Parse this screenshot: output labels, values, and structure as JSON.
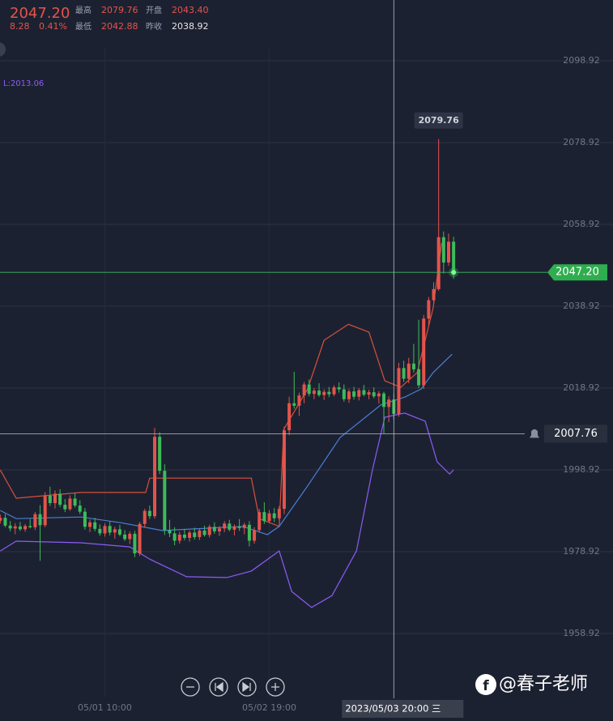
{
  "header": {
    "price": "2047.20",
    "change": "8.28",
    "change_pct": "0.41%",
    "stats": [
      {
        "label": "最高",
        "value": "2079.76"
      },
      {
        "label": "开盘",
        "value": "2043.40"
      },
      {
        "label": "最低",
        "value": "2042.88"
      },
      {
        "label": "昨收",
        "value": "2038.92"
      }
    ],
    "boll_label": "L:2013.06"
  },
  "chart_data": {
    "type": "candlestick",
    "up_color": "#e4544a",
    "down_color": "#3dbb5a",
    "xlim": [
      -0.05,
      123.0
    ],
    "ylim": [
      1943.48,
      2113.77
    ],
    "yticks": [
      2098.92,
      2078.92,
      2058.92,
      2038.92,
      2018.92,
      1998.92,
      1978.92,
      1958.92
    ],
    "xticks": [
      {
        "value": 21,
        "label": "05/01 10:00"
      },
      {
        "value": 54,
        "label": "05/02 19:00"
      }
    ],
    "grid": true,
    "open": [
      1986.5,
      1987.2,
      1985.3,
      1984.6,
      1985.1,
      1984.4,
      1985.2,
      1984.9,
      1988.1,
      1985.4,
      1992.6,
      1990.8,
      1993.1,
      1990.4,
      1989.3,
      1991.9,
      1990.2,
      1988.7,
      1985.0,
      1986.1,
      1984.5,
      1983.4,
      1985.2,
      1983.6,
      1984.4,
      1983.1,
      1982.0,
      1983.3,
      1978.5,
      1985.7,
      1988.9,
      1987.6,
      2007.0,
      1998.7,
      1984.2,
      1983.4,
      1981.6,
      1983.1,
      1982.3,
      1983.6,
      1982.5,
      1984.1,
      1983.0,
      1985.0,
      1983.9,
      1984.6,
      1985.8,
      1984.3,
      1985.1,
      1984.7,
      1985.5,
      1981.6,
      1984.2,
      1988.6,
      1986.4,
      1988.3,
      1987.1,
      1989.4,
      2008.6,
      2015.2,
      2014.6,
      2017.1,
      2019.8,
      2017.5,
      2018.3,
      2017.2,
      2018.0,
      2017.4,
      2019.1,
      2018.6,
      2016.2,
      2018.1,
      2016.8,
      2018.4,
      2017.3,
      2017.9,
      2016.9,
      2017.6,
      2014.3,
      2016.1,
      2012.6,
      2023.8,
      2021.2,
      2024.9,
      2023.5,
      2019.6,
      2035.9,
      2040.4,
      2043.1,
      2055.8,
      2049.6,
      2054.7
    ],
    "high": [
      1988.0,
      1988.1,
      1986.4,
      1985.9,
      1986.2,
      1985.7,
      1986.9,
      1988.6,
      1990.3,
      1993.5,
      1994.8,
      1993.9,
      1994.2,
      1991.8,
      1992.7,
      1993.3,
      1991.5,
      1989.6,
      1986.8,
      1987.2,
      1985.6,
      1985.9,
      1986.3,
      1985.0,
      1985.5,
      1984.2,
      1983.9,
      1984.0,
      1986.2,
      1989.4,
      1990.2,
      2009.2,
      2008.1,
      2000.3,
      1986.7,
      1984.9,
      1983.8,
      1984.5,
      1984.1,
      1984.8,
      1984.6,
      1985.3,
      1985.5,
      1986.1,
      1985.2,
      1986.4,
      1986.7,
      1985.6,
      1986.9,
      1986.0,
      1986.4,
      1984.9,
      1989.4,
      1991.0,
      1989.1,
      1989.6,
      1990.1,
      2009.5,
      2016.8,
      2022.9,
      2017.8,
      2020.4,
      2021.0,
      2018.9,
      2020.1,
      2018.6,
      2019.2,
      2019.6,
      2020.3,
      2019.8,
      2018.7,
      2019.2,
      2018.9,
      2019.7,
      2018.5,
      2019.1,
      2018.2,
      2018.0,
      2016.9,
      2017.5,
      2025.1,
      2025.6,
      2026.3,
      2029.7,
      2035.6,
      2036.8,
      2041.2,
      2044.8,
      2079.76,
      2057.2,
      2056.7,
      2055.9
    ],
    "low": [
      1985.8,
      1984.9,
      1983.9,
      1983.2,
      1984.0,
      1983.8,
      1984.6,
      1984.2,
      1976.7,
      1984.9,
      1990.1,
      1989.5,
      1989.8,
      1988.6,
      1988.9,
      1989.7,
      1988.1,
      1984.3,
      1983.7,
      1983.9,
      1982.8,
      1982.6,
      1982.9,
      1982.1,
      1982.7,
      1981.5,
      1980.8,
      1977.6,
      1977.9,
      1984.8,
      1986.9,
      1987.0,
      1997.9,
      1983.0,
      1982.5,
      1980.5,
      1980.9,
      1981.7,
      1981.4,
      1981.9,
      1981.8,
      1982.6,
      1982.4,
      1983.3,
      1982.8,
      1983.7,
      1983.9,
      1982.9,
      1984.0,
      1983.2,
      1980.2,
      1980.9,
      1983.6,
      1985.7,
      1985.9,
      1986.2,
      1986.6,
      1988.1,
      2007.4,
      2013.9,
      2012.1,
      2015.2,
      2016.9,
      2016.2,
      2016.8,
      2016.0,
      2016.7,
      2016.9,
      2017.8,
      2015.6,
      2015.3,
      2016.1,
      2015.9,
      2016.9,
      2016.2,
      2016.4,
      2015.1,
      2007.8,
      2010.6,
      2011.2,
      2011.9,
      2020.4,
      2020.1,
      2022.7,
      2018.9,
      2018.7,
      2034.1,
      2039.6,
      2042.7,
      2046.9,
      2048.8,
      2045.6
    ],
    "close": [
      1987.2,
      1985.3,
      1984.6,
      1985.1,
      1984.4,
      1985.2,
      1984.9,
      1988.1,
      1985.4,
      1992.6,
      1990.8,
      1993.1,
      1990.4,
      1989.3,
      1991.9,
      1990.2,
      1988.7,
      1985.0,
      1986.1,
      1984.5,
      1983.4,
      1985.2,
      1983.6,
      1984.4,
      1983.1,
      1982.0,
      1983.3,
      1978.5,
      1985.7,
      1988.9,
      1987.6,
      2007.0,
      1998.7,
      1984.2,
      1983.4,
      1981.6,
      1983.1,
      1982.3,
      1983.6,
      1982.5,
      1984.1,
      1983.0,
      1985.0,
      1983.9,
      1984.6,
      1985.8,
      1984.3,
      1985.1,
      1984.7,
      1985.5,
      1981.6,
      1984.2,
      1988.6,
      1986.4,
      1988.3,
      1987.1,
      1989.4,
      2008.6,
      2015.2,
      2014.6,
      2017.1,
      2019.8,
      2017.5,
      2018.3,
      2017.2,
      2018.0,
      2017.4,
      2019.1,
      2018.6,
      2016.2,
      2018.1,
      2016.8,
      2018.4,
      2017.3,
      2017.9,
      2016.9,
      2017.6,
      2014.3,
      2016.1,
      2012.6,
      2023.8,
      2021.2,
      2024.9,
      2023.5,
      2019.6,
      2035.9,
      2040.4,
      2043.1,
      2055.8,
      2049.6,
      2054.7,
      2047.2
    ],
    "bands": [
      {
        "color": "#d9503c",
        "x": [
          0,
          3.2,
          16.2,
          29.2,
          30,
          50.4,
          52,
          56,
          56.9,
          61.7,
          65,
          69.9,
          74,
          77.2,
          80.4,
          83.7,
          86.9,
          88.6
        ],
        "values": [
          1998.9,
          1992.0,
          1993.4,
          1993.4,
          1996.9,
          1996.9,
          1987.0,
          1985.1,
          2008.8,
          2018.7,
          2030.6,
          2034.5,
          2032.6,
          2020.7,
          2019.1,
          2022.7,
          2038.5,
          2054.4
        ]
      },
      {
        "color": "#4a7fd6",
        "x": [
          0,
          3.2,
          16.2,
          24.3,
          32.5,
          48.7,
          53.6,
          56,
          61.7,
          68.2,
          76.4,
          81.2,
          84.5,
          86.9,
          90.7
        ],
        "values": [
          1989.0,
          1987.0,
          1987.4,
          1986.0,
          1984.1,
          1985.1,
          1983.1,
          1985.1,
          1995.0,
          2006.8,
          2014.8,
          2016.7,
          2018.7,
          2022.7,
          2027.2
        ]
      },
      {
        "color": "#8b5cf6",
        "x": [
          0,
          3.2,
          16.2,
          26,
          30,
          37.4,
          45.5,
          50.4,
          56,
          58.5,
          62.5,
          66.6,
          71.5,
          74.7,
          77.2,
          81.2,
          85.3,
          87.7,
          90.2,
          91
        ],
        "values": [
          1979.1,
          1981.5,
          1981.1,
          1980.1,
          1977.1,
          1972.8,
          1972.6,
          1974.2,
          1979.1,
          1969.2,
          1965.3,
          1968.2,
          1979.1,
          1998.9,
          2011.8,
          2012.8,
          2010.8,
          2000.9,
          1997.9,
          1998.9
        ]
      }
    ],
    "last_price_label": "2047.20",
    "crosshair": {
      "x": 79,
      "value": 2007.76,
      "time_label": "2023/05/03 20:00 三"
    }
  },
  "watermark": "@春子老师"
}
